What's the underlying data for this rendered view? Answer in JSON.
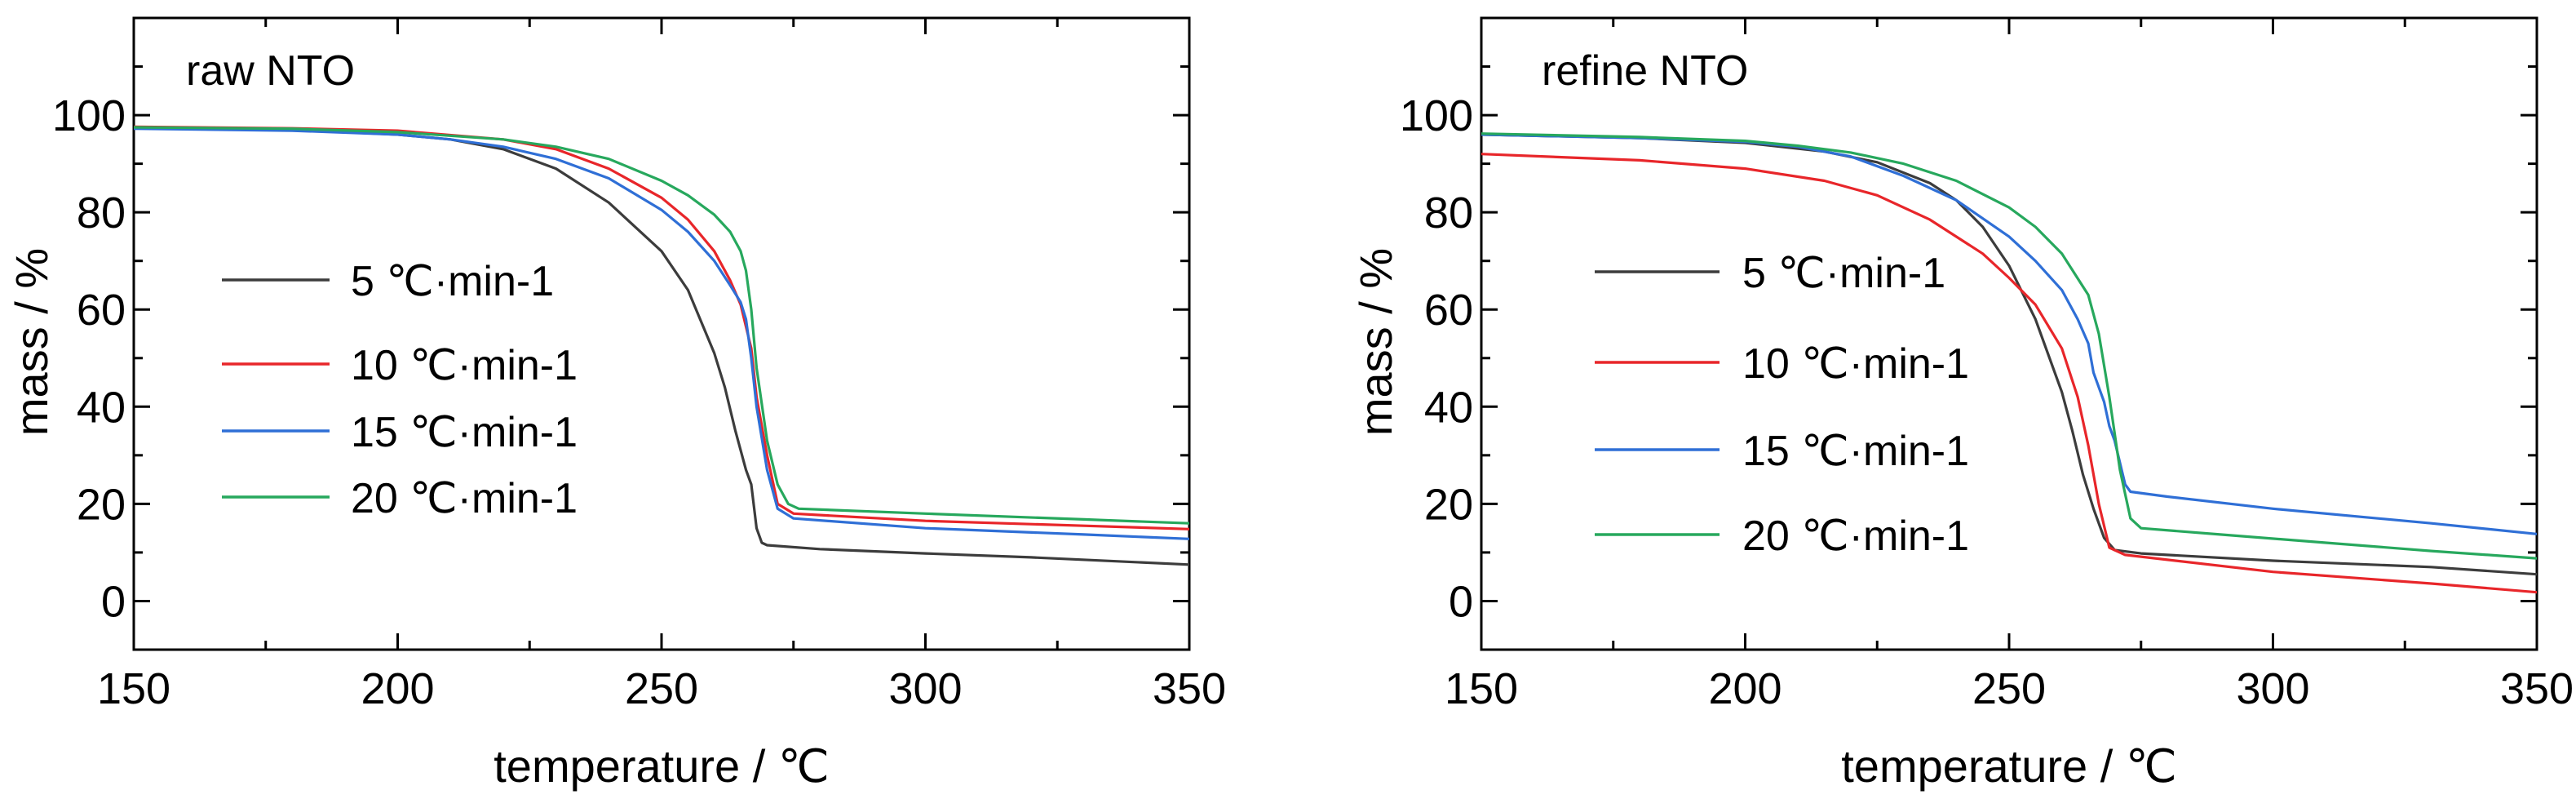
{
  "chart_data": [
    {
      "type": "line",
      "title": "raw NTO",
      "xlabel": "temperature / ℃",
      "ylabel": "mass / %",
      "xlim": [
        150,
        350
      ],
      "ylim": [
        -10,
        120
      ],
      "xticks": [
        "150",
        "200",
        "250",
        "300",
        "350"
      ],
      "yticks": [
        "0",
        "20",
        "40",
        "60",
        "80",
        "100"
      ],
      "legend_position": "center-left",
      "grid": false,
      "series": [
        {
          "name": "5  ℃·min-1",
          "color": "#3c3c3c",
          "points": [
            [
              150,
              97.3
            ],
            [
              180,
              97
            ],
            [
              200,
              96
            ],
            [
              210,
              95
            ],
            [
              220,
              93
            ],
            [
              230,
              89
            ],
            [
              240,
              82
            ],
            [
              250,
              72
            ],
            [
              255,
              64
            ],
            [
              260,
              51
            ],
            [
              262,
              44
            ],
            [
              264,
              35
            ],
            [
              266,
              27
            ],
            [
              267,
              24
            ],
            [
              268,
              15
            ],
            [
              269,
              12
            ],
            [
              270,
              11.5
            ],
            [
              280,
              10.7
            ],
            [
              300,
              9.8
            ],
            [
              320,
              9
            ],
            [
              350,
              7.5
            ]
          ]
        },
        {
          "name": "10  ℃·min-1",
          "color": "#e8262a",
          "points": [
            [
              150,
              97.6
            ],
            [
              180,
              97.3
            ],
            [
              200,
              96.8
            ],
            [
              220,
              95
            ],
            [
              230,
              93
            ],
            [
              240,
              89
            ],
            [
              250,
              83
            ],
            [
              255,
              78.5
            ],
            [
              260,
              72
            ],
            [
              263,
              66
            ],
            [
              265,
              61
            ],
            [
              267,
              52
            ],
            [
              268,
              42
            ],
            [
              270,
              30
            ],
            [
              272,
              20
            ],
            [
              275,
              18
            ],
            [
              300,
              16.5
            ],
            [
              330,
              15.5
            ],
            [
              350,
              14.8
            ]
          ]
        },
        {
          "name": "15  ℃·min-1",
          "color": "#2f6fd6",
          "points": [
            [
              150,
              97.2
            ],
            [
              180,
              96.8
            ],
            [
              200,
              96
            ],
            [
              210,
              95
            ],
            [
              220,
              93.5
            ],
            [
              230,
              91
            ],
            [
              240,
              87
            ],
            [
              250,
              80.5
            ],
            [
              255,
              76
            ],
            [
              260,
              70
            ],
            [
              263,
              65
            ],
            [
              265,
              61.5
            ],
            [
              266,
              58
            ],
            [
              267,
              50
            ],
            [
              268,
              40
            ],
            [
              270,
              27
            ],
            [
              272,
              19
            ],
            [
              275,
              17
            ],
            [
              300,
              15
            ],
            [
              330,
              13.7
            ],
            [
              350,
              12.8
            ]
          ]
        },
        {
          "name": "20  ℃·min-1",
          "color": "#27a85d",
          "points": [
            [
              150,
              97.5
            ],
            [
              180,
              97.2
            ],
            [
              200,
              96.5
            ],
            [
              220,
              95
            ],
            [
              230,
              93.5
            ],
            [
              240,
              91
            ],
            [
              250,
              86.5
            ],
            [
              255,
              83.5
            ],
            [
              260,
              79.5
            ],
            [
              263,
              76
            ],
            [
              265,
              72
            ],
            [
              266,
              68
            ],
            [
              267,
              60
            ],
            [
              268,
              48
            ],
            [
              270,
              33
            ],
            [
              272,
              24
            ],
            [
              274,
              20
            ],
            [
              276,
              19
            ],
            [
              300,
              18
            ],
            [
              330,
              16.8
            ],
            [
              350,
              16
            ]
          ]
        }
      ]
    },
    {
      "type": "line",
      "title": "refine NTO",
      "xlabel": "temperature / ℃",
      "ylabel": "mass / %",
      "xlim": [
        150,
        350
      ],
      "ylim": [
        -10,
        120
      ],
      "xticks": [
        "150",
        "200",
        "250",
        "300",
        "350"
      ],
      "yticks": [
        "0",
        "20",
        "40",
        "60",
        "80",
        "100"
      ],
      "legend_position": "center-left",
      "grid": false,
      "series": [
        {
          "name": "5  ℃·min-1",
          "color": "#3c3c3c",
          "points": [
            [
              150,
              96
            ],
            [
              180,
              95.3
            ],
            [
              200,
              94.3
            ],
            [
              215,
              92.5
            ],
            [
              225,
              90.3
            ],
            [
              235,
              86
            ],
            [
              240,
              82.5
            ],
            [
              245,
              77
            ],
            [
              250,
              69
            ],
            [
              255,
              58
            ],
            [
              260,
              43
            ],
            [
              262,
              35
            ],
            [
              264,
              26
            ],
            [
              266,
              19
            ],
            [
              268,
              13
            ],
            [
              270,
              10.5
            ],
            [
              275,
              9.8
            ],
            [
              300,
              8.3
            ],
            [
              330,
              7
            ],
            [
              350,
              5.5
            ]
          ]
        },
        {
          "name": "10  ℃·min-1",
          "color": "#e8262a",
          "points": [
            [
              150,
              92
            ],
            [
              180,
              90.7
            ],
            [
              200,
              89
            ],
            [
              215,
              86.5
            ],
            [
              225,
              83.5
            ],
            [
              235,
              78.5
            ],
            [
              245,
              71.5
            ],
            [
              250,
              66.5
            ],
            [
              255,
              61
            ],
            [
              260,
              52
            ],
            [
              263,
              42
            ],
            [
              265,
              32
            ],
            [
              267,
              20
            ],
            [
              269,
              11
            ],
            [
              272,
              9.5
            ],
            [
              300,
              6
            ],
            [
              330,
              3.6
            ],
            [
              350,
              1.8
            ]
          ]
        },
        {
          "name": "15  ℃·min-1",
          "color": "#2f6fd6",
          "points": [
            [
              150,
              96
            ],
            [
              180,
              95.3
            ],
            [
              200,
              94.5
            ],
            [
              210,
              93.5
            ],
            [
              220,
              91.5
            ],
            [
              230,
              87.5
            ],
            [
              240,
              82.5
            ],
            [
              250,
              75
            ],
            [
              255,
              70
            ],
            [
              260,
              64
            ],
            [
              263,
              58
            ],
            [
              265,
              53
            ],
            [
              266,
              47
            ],
            [
              267,
              44
            ],
            [
              268,
              41
            ],
            [
              269,
              36
            ],
            [
              270,
              33
            ],
            [
              272,
              24
            ],
            [
              273,
              22.5
            ],
            [
              280,
              21.5
            ],
            [
              300,
              19
            ],
            [
              330,
              16
            ],
            [
              350,
              13.8
            ]
          ]
        },
        {
          "name": "20  ℃·min-1",
          "color": "#27a85d",
          "points": [
            [
              150,
              96.2
            ],
            [
              180,
              95.5
            ],
            [
              200,
              94.7
            ],
            [
              210,
              93.7
            ],
            [
              220,
              92.3
            ],
            [
              230,
              90
            ],
            [
              240,
              86.5
            ],
            [
              250,
              81
            ],
            [
              255,
              77
            ],
            [
              260,
              71.5
            ],
            [
              265,
              63
            ],
            [
              267,
              55
            ],
            [
              269,
              42
            ],
            [
              271,
              27
            ],
            [
              273,
              17
            ],
            [
              275,
              15
            ],
            [
              290,
              13.7
            ],
            [
              310,
              12
            ],
            [
              330,
              10.3
            ],
            [
              350,
              8.8
            ]
          ]
        }
      ]
    }
  ]
}
